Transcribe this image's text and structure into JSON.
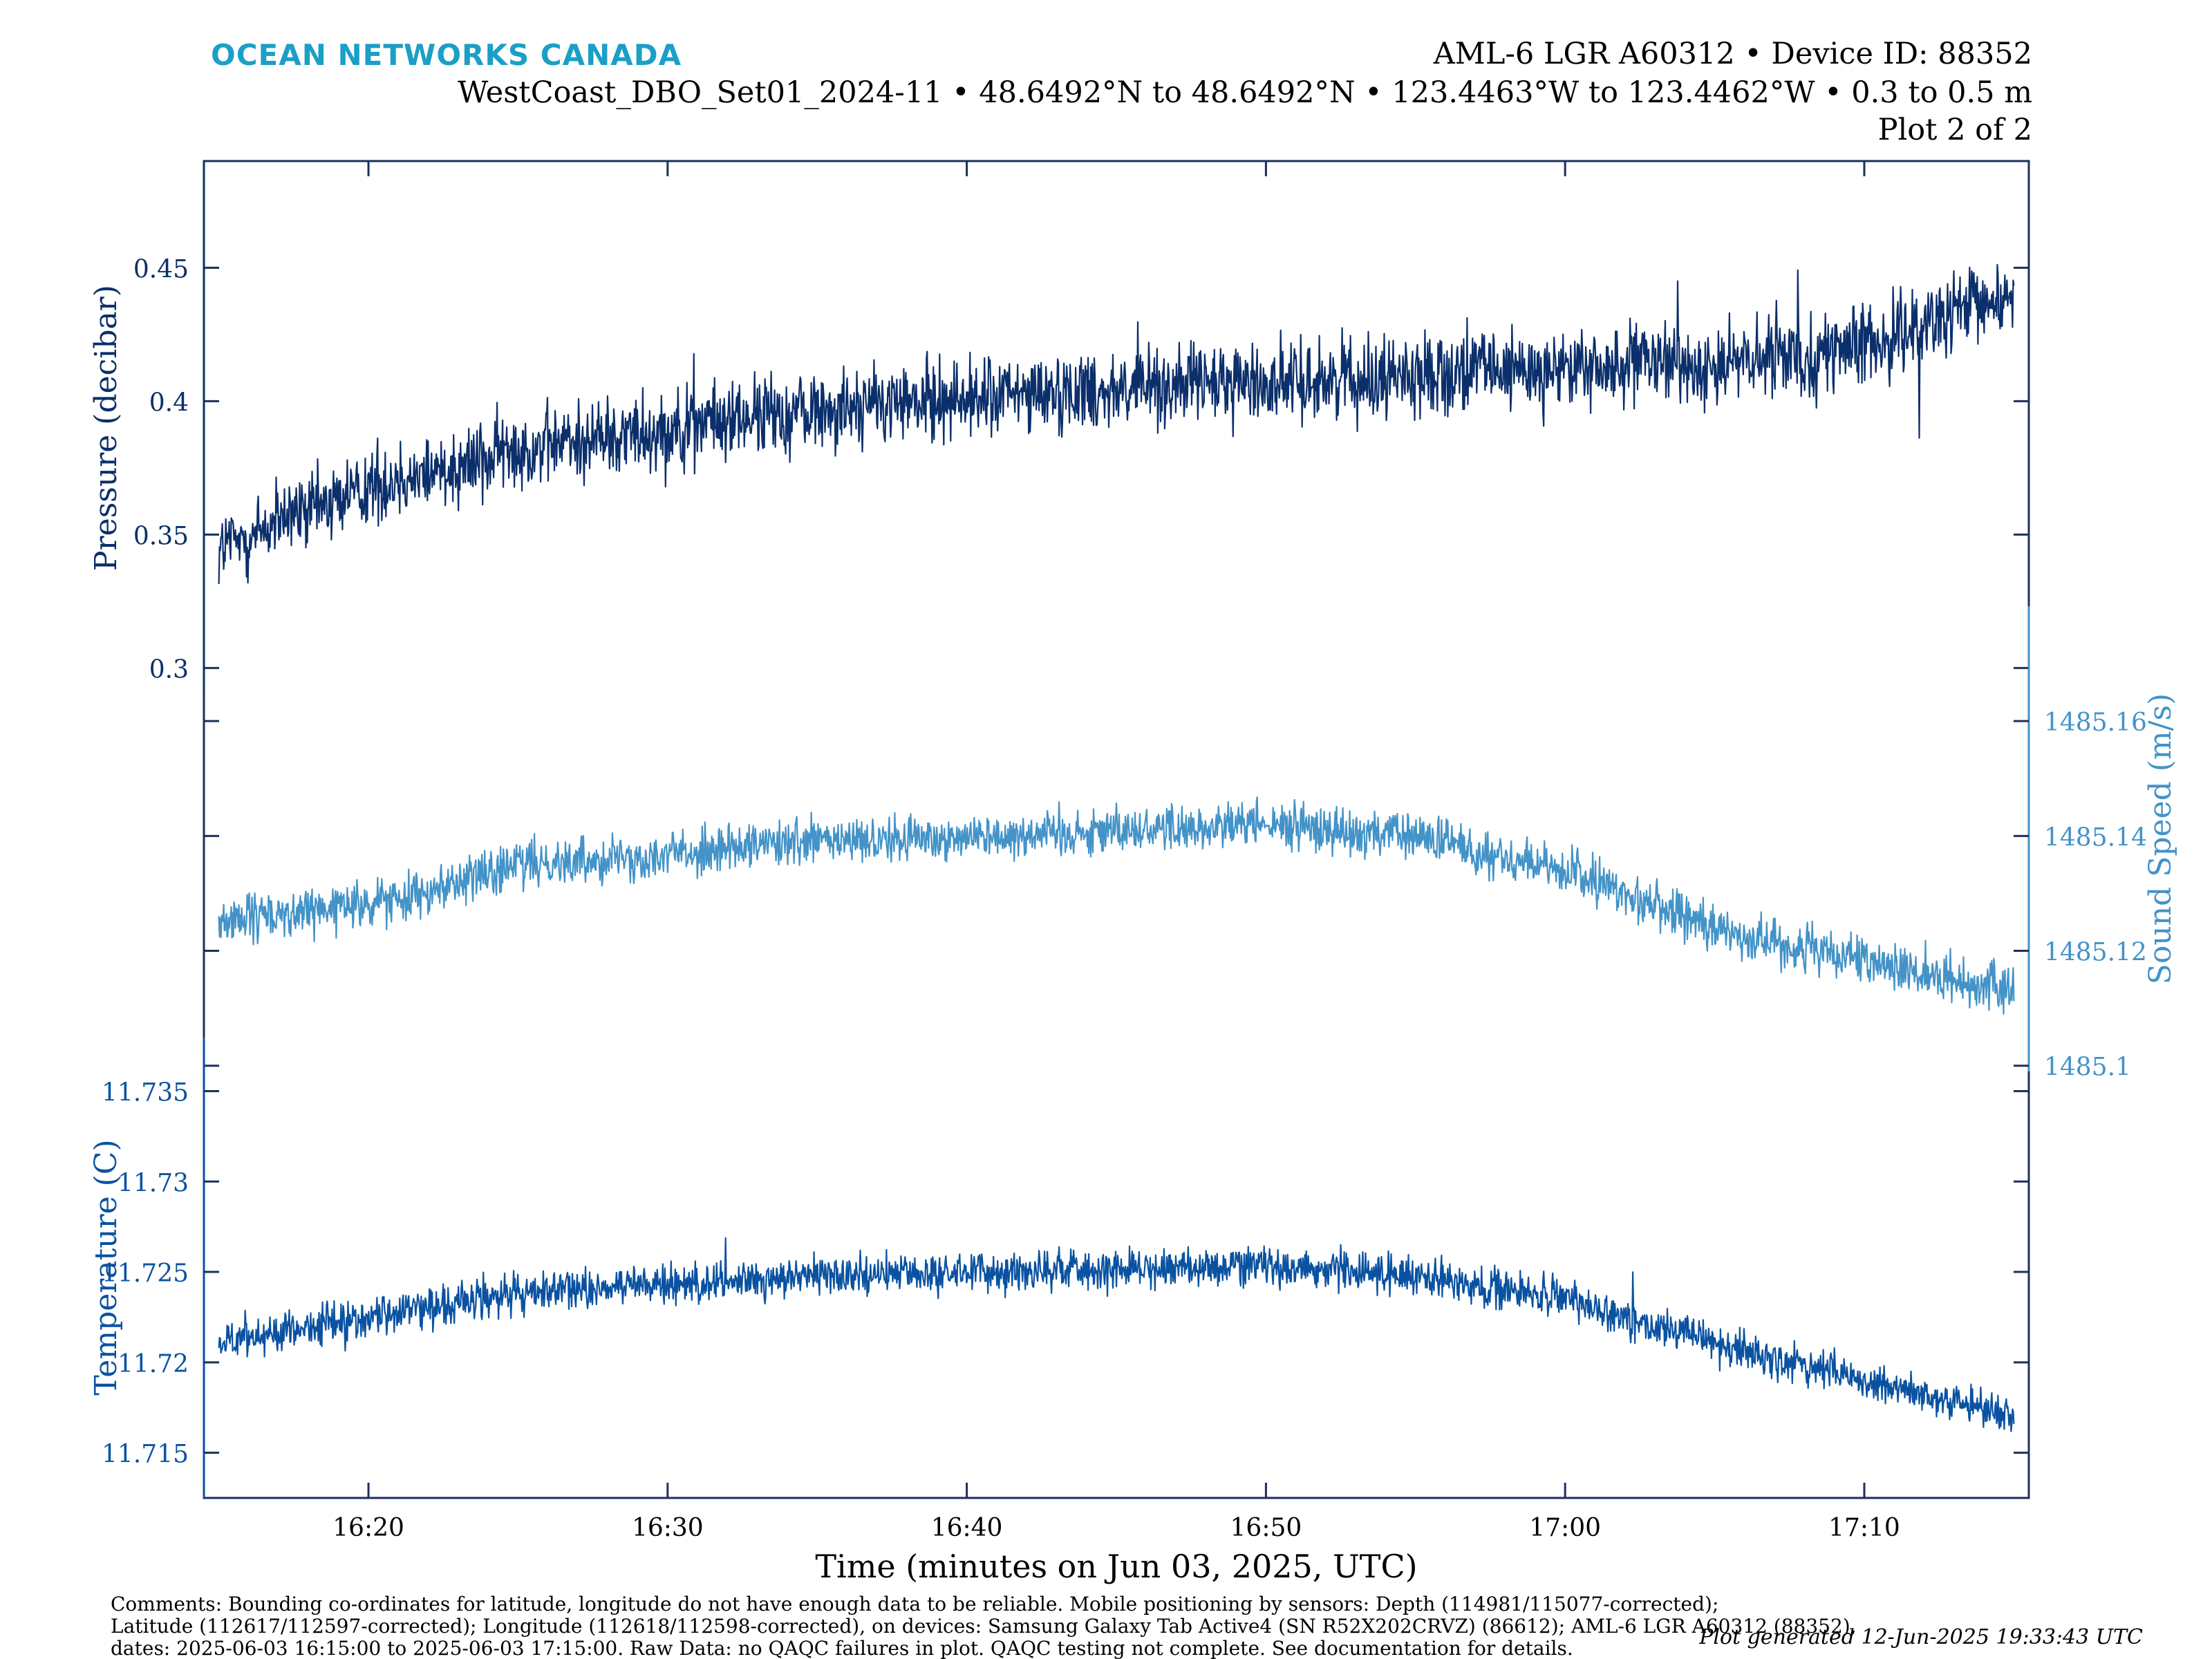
{
  "header": {
    "brand": "OCEAN NETWORKS CANADA",
    "brand_color": "#1b9fc6",
    "device_line": "AML-6 LGR A60312 • Device ID: 88352",
    "location_line": "WestCoast_DBO_Set01_2024-11 • 48.6492°N to 48.6492°N • 123.4463°W to 123.4462°W • 0.3 to 0.5 m",
    "plot_of": "Plot 2 of 2"
  },
  "chart_data": {
    "type": "line",
    "x_range": [
      "2025-06-03 16:14:30",
      "2025-06-03 17:15:30"
    ],
    "x_ticks": [
      "16:20",
      "16:30",
      "16:40",
      "16:50",
      "17:00",
      "17:10"
    ],
    "xlabel": "Time (minutes on Jun 03, 2025, UTC)",
    "grid": false,
    "panels": [
      {
        "name": "pressure",
        "ylabel": "Pressure (decibar)",
        "axis_side": "left",
        "color": "#0b2f6b",
        "ylim": [
          0.29,
          0.49
        ],
        "y_ticks": [
          "0.3",
          "0.35",
          "0.4",
          "0.45"
        ],
        "series": [
          {
            "x": [
              "16:15",
              "16:20",
              "16:25",
              "16:30",
              "16:35",
              "16:40",
              "16:45",
              "16:50",
              "16:55",
              "17:00",
              "17:05",
              "17:10",
              "17:15"
            ],
            "values": [
              0.345,
              0.368,
              0.382,
              0.39,
              0.397,
              0.401,
              0.405,
              0.407,
              0.41,
              0.412,
              0.414,
              0.42,
              0.44
            ],
            "noise_range": 0.022
          }
        ]
      },
      {
        "name": "sound-speed",
        "ylabel": "Sound Speed (m/s)",
        "axis_side": "right",
        "color": "#4393c8",
        "ylim": [
          1485.099,
          1485.18
        ],
        "y_ticks": [
          "1485.1",
          "1485.12",
          "1485.14",
          "1485.16"
        ],
        "series": [
          {
            "x": [
              "16:15",
              "16:20",
              "16:25",
              "16:30",
              "16:35",
              "16:40",
              "16:45",
              "16:50",
              "16:55",
              "17:00",
              "17:05",
              "17:10",
              "17:15"
            ],
            "values": [
              1485.125,
              1485.128,
              1485.135,
              1485.137,
              1485.139,
              1485.14,
              1485.141,
              1485.142,
              1485.14,
              1485.134,
              1485.124,
              1485.118,
              1485.113
            ],
            "noise_range": 0.006
          }
        ]
      },
      {
        "name": "temperature",
        "ylabel": "Temperature (C)",
        "axis_side": "left",
        "color": "#0a52a1",
        "ylim": [
          11.7125,
          11.738
        ],
        "y_ticks": [
          "11.715",
          "11.72",
          "11.725",
          "11.73",
          "11.735"
        ],
        "series": [
          {
            "x": [
              "16:15",
              "16:20",
              "16:25",
              "16:30",
              "16:35",
              "16:40",
              "16:45",
              "16:50",
              "16:55",
              "17:00",
              "17:05",
              "17:10",
              "17:15"
            ],
            "values": [
              11.7212,
              11.7225,
              11.7238,
              11.7243,
              11.7248,
              11.725,
              11.7252,
              11.7254,
              11.7248,
              11.7235,
              11.721,
              11.719,
              11.717
            ],
            "noise_range": 0.0016
          }
        ]
      }
    ]
  },
  "footer": {
    "comments_1": "Comments: Bounding co-ordinates for latitude, longitude do not have enough data to be reliable. Mobile positioning by sensors: Depth (114981/115077-corrected);",
    "comments_2": "Latitude (112617/112597-corrected); Longitude (112618/112598-corrected), on devices: Samsung Galaxy Tab Active4 (SN R52X202CRVZ) (86612); AML-6 LGR A60312 (88352),",
    "comments_3": "dates: 2025-06-03 16:15:00 to 2025-06-03 17:15:00. Raw Data: no QAQC failures in plot. QAQC testing not complete. See documentation for details.",
    "generated": "Plot generated 12-Jun-2025 19:33:43 UTC"
  }
}
